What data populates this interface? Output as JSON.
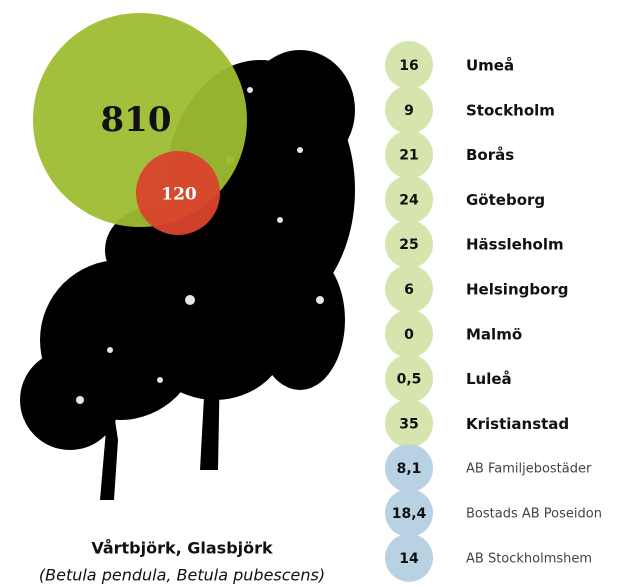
{
  "circles": {
    "large": "810",
    "small": "120"
  },
  "cities": [
    {
      "value": "16",
      "label": "Umeå"
    },
    {
      "value": "9",
      "label": "Stockholm"
    },
    {
      "value": "21",
      "label": "Borås"
    },
    {
      "value": "24",
      "label": "Göteborg"
    },
    {
      "value": "25",
      "label": "Hässleholm"
    },
    {
      "value": "6",
      "label": "Helsingborg"
    },
    {
      "value": "0",
      "label": "Malmö"
    },
    {
      "value": "0,5",
      "label": "Luleå"
    },
    {
      "value": "35",
      "label": "Kristianstad"
    }
  ],
  "companies": [
    {
      "value": "8,1",
      "label": "AB Familjebostäder"
    },
    {
      "value": "18,4",
      "label": "Bostads AB Poseidon"
    },
    {
      "value": "14",
      "label": "AB Stockholmshem"
    }
  ],
  "caption": {
    "title": "Vårtbjörk, Glasbjörk",
    "subtitle": "(Betula pendula, Betula pubescens)"
  }
}
